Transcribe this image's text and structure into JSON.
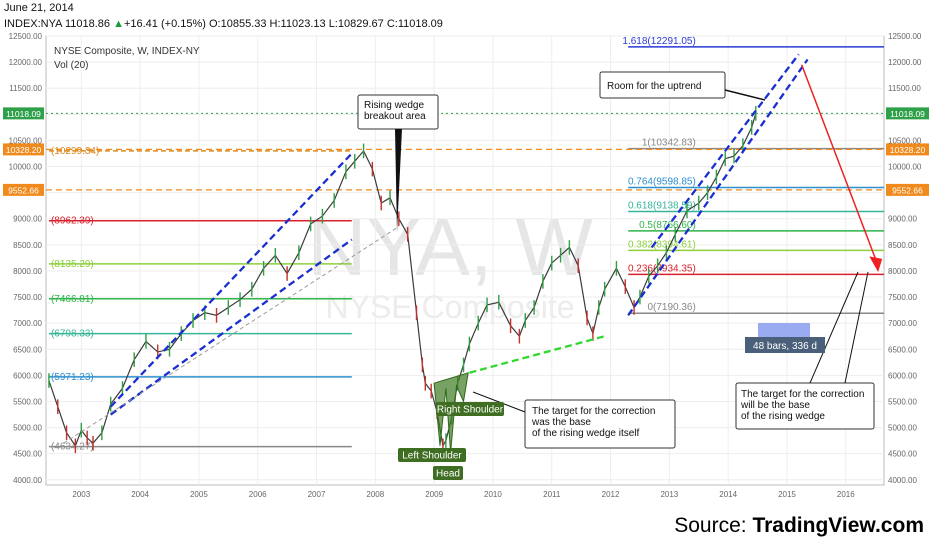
{
  "header": {
    "date": "June 21, 2014",
    "symbol": "INDEX:NYA",
    "last": "11018.86",
    "change": "+16.41 (+0.15%)",
    "open": "O:10855.33",
    "high": "H:11023.13",
    "low": "L:10829.67",
    "close": "C:11018.09"
  },
  "legend": {
    "title": "NYSE Composite, W, INDEX-NY",
    "vol": "Vol (20)"
  },
  "watermark": {
    "symbol": "NYA, W",
    "name": "NYSE Composite"
  },
  "source": {
    "prefix": "Source: ",
    "brand": "TradingView.com"
  },
  "chart_data": {
    "type": "line",
    "title": "NYSE Composite, W, INDEX-NY",
    "xlabel": "",
    "ylabel": "",
    "ylim": [
      3900,
      12500
    ],
    "xlim": [
      2002.4,
      2016.65
    ],
    "x_ticks": [
      "2003",
      "2004",
      "2005",
      "2006",
      "2007",
      "2008",
      "2009",
      "2010",
      "2011",
      "2012",
      "2013",
      "2014",
      "2015",
      "2016"
    ],
    "x_tick_values": [
      2003,
      2004,
      2005,
      2006,
      2007,
      2008,
      2009,
      2010,
      2011,
      2012,
      2013,
      2014,
      2015,
      2016
    ],
    "y_ticks": [
      4000,
      4500,
      5000,
      5500,
      6000,
      6500,
      7000,
      7500,
      8000,
      8500,
      9000,
      9500,
      10000,
      10500,
      11000,
      11500,
      12000,
      12500
    ],
    "y_tick_labels": [
      "4000.00",
      "4500.00",
      "5000.00",
      "5500.00",
      "6000.00",
      "6500.00",
      "7000.00",
      "7500.00",
      "8000.00",
      "8500.00",
      "9000.00",
      "9500.00",
      "10000.00",
      "10500.00",
      "11000.00",
      "11500.00",
      "12000.00",
      "12500.00"
    ],
    "price": {
      "x": [
        2002.45,
        2002.6,
        2002.75,
        2002.9,
        2003.0,
        2003.1,
        2003.2,
        2003.35,
        2003.5,
        2003.7,
        2003.9,
        2004.1,
        2004.3,
        2004.5,
        2004.7,
        2004.9,
        2005.1,
        2005.3,
        2005.5,
        2005.7,
        2005.9,
        2006.1,
        2006.3,
        2006.5,
        2006.7,
        2006.9,
        2007.1,
        2007.3,
        2007.5,
        2007.65,
        2007.8,
        2007.95,
        2008.1,
        2008.25,
        2008.4,
        2008.55,
        2008.7,
        2008.8,
        2008.85,
        2008.95,
        2009.05,
        2009.15,
        2009.2,
        2009.3,
        2009.4,
        2009.5,
        2009.6,
        2009.75,
        2009.9,
        2010.1,
        2010.3,
        2010.45,
        2010.55,
        2010.7,
        2010.85,
        2011.0,
        2011.15,
        2011.3,
        2011.45,
        2011.6,
        2011.7,
        2011.8,
        2011.9,
        2012.1,
        2012.25,
        2012.4,
        2012.5,
        2012.65,
        2012.8,
        2012.95,
        2013.1,
        2013.3,
        2013.5,
        2013.65,
        2013.8,
        2013.95,
        2014.1,
        2014.25,
        2014.4,
        2014.47
      ],
      "y": [
        5900,
        5400,
        4900,
        4650,
        4950,
        4800,
        4700,
        4900,
        5450,
        5750,
        6300,
        6650,
        6450,
        6500,
        6800,
        7050,
        7200,
        7150,
        7300,
        7450,
        7650,
        8050,
        8300,
        7950,
        8350,
        8900,
        9050,
        9350,
        9900,
        10100,
        10300,
        9950,
        9300,
        9400,
        9000,
        8700,
        7200,
        6200,
        5850,
        5700,
        5300,
        4650,
        4750,
        5200,
        5850,
        6200,
        6600,
        7000,
        7350,
        7400,
        6950,
        6750,
        7050,
        7300,
        7800,
        8150,
        8300,
        8450,
        8100,
        7100,
        6800,
        7300,
        7650,
        8050,
        7700,
        7300,
        7500,
        7900,
        8100,
        8350,
        8700,
        9150,
        9300,
        9500,
        9800,
        10150,
        10200,
        10400,
        10750,
        11018
      ]
    },
    "fib_left": [
      {
        "label": "(10299.34)",
        "value": 10299.34,
        "color": "#d98a1e"
      },
      {
        "label": "(8962.39)",
        "value": 8962.39,
        "color": "#d9212d"
      },
      {
        "label": "(8135.29)",
        "value": 8135.29,
        "color": "#8ccf3b"
      },
      {
        "label": "(7466.81)",
        "value": 7466.81,
        "color": "#2fb54a"
      },
      {
        "label": "(6798.33)",
        "value": 6798.33,
        "color": "#36b59a"
      },
      {
        "label": "(5971.23)",
        "value": 5971.23,
        "color": "#2f8fcf"
      },
      {
        "label": "(4634.27)",
        "value": 4634.27,
        "color": "#888888"
      }
    ],
    "fib_right": [
      {
        "label": "1.618(12291.05)",
        "value": 12291.05,
        "color": "#2a3ad6"
      },
      {
        "label": "1(10342.83)",
        "value": 10342.83,
        "color": "#888888"
      },
      {
        "label": "0.764(9598.85)",
        "value": 9598.85,
        "color": "#2f8fcf"
      },
      {
        "label": "0.618(9138.59)",
        "value": 9138.59,
        "color": "#36b59a"
      },
      {
        "label": "0.5(8766.60)",
        "value": 8766.6,
        "color": "#2fb54a"
      },
      {
        "label": "0.382(8394.61)",
        "value": 8394.61,
        "color": "#8ccf3b"
      },
      {
        "label": "0.236(7934.35)",
        "value": 7934.35,
        "color": "#d9212d"
      },
      {
        "label": "0(7190.36)",
        "value": 7190.36,
        "color": "#888888"
      }
    ],
    "price_badges": [
      {
        "label": "11018.09",
        "value": 11018.09,
        "color": "#2fa04a"
      },
      {
        "label": "10328.20",
        "value": 10328.2,
        "color": "#f08a1c"
      },
      {
        "label": "9552.66",
        "value": 9552.66,
        "color": "#f08a1c"
      }
    ],
    "annotations": {
      "rising_wedge": "Rising wedge\nbreakout area",
      "room": "Room for the uptrend",
      "target_left": "The target for the correction\nwas the base\nof the rising wedge itself",
      "target_right": "The target for the correction\nwill be the base\nof the rising wedge",
      "left_shoulder": "Left Shoulder",
      "head": "Head",
      "right_shoulder": "Right Shoulder",
      "bars": "48 bars, 336 d"
    },
    "legend": "top-left",
    "grid": true
  }
}
